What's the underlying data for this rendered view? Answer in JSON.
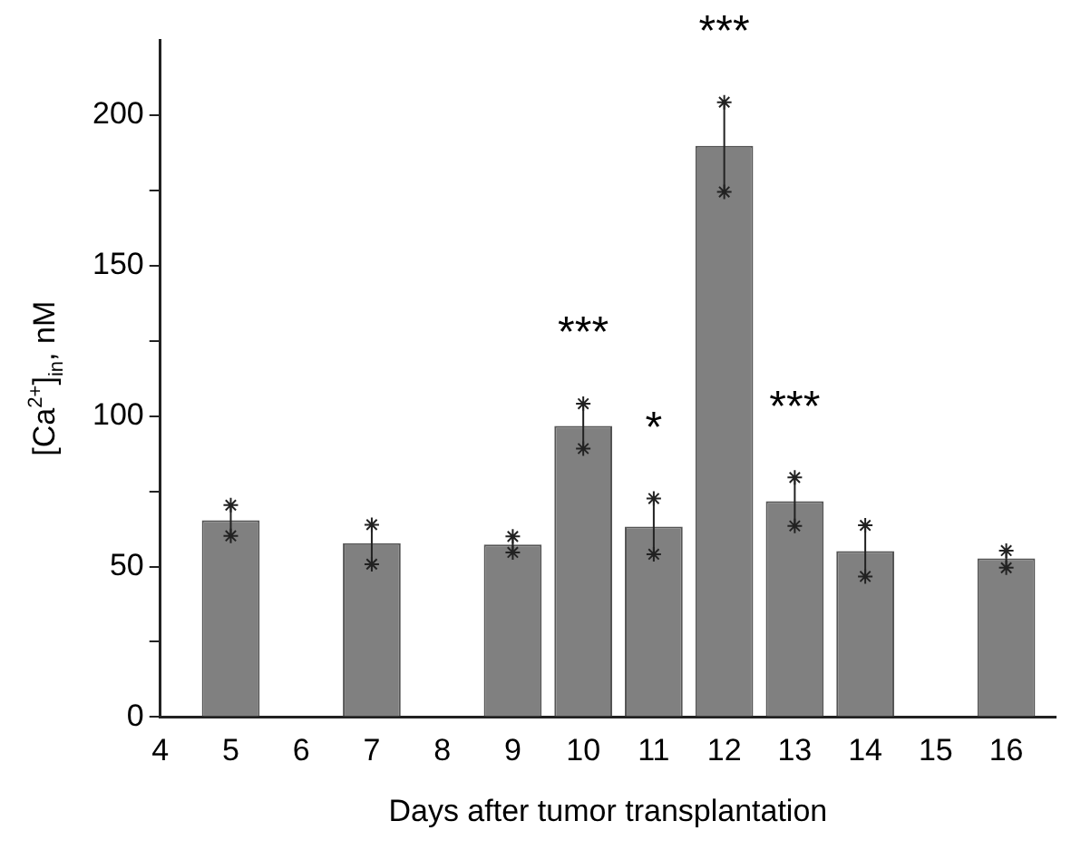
{
  "chart_data": {
    "type": "bar",
    "xlabel": "Days after tumor transplantation",
    "ylabel": "[Ca$^{2+}$]$_{in}$, nM",
    "x": [
      5,
      7,
      9,
      10,
      11,
      12,
      13,
      14,
      16
    ],
    "values": [
      65.4,
      57.8,
      57.3,
      96.7,
      63.3,
      189.8,
      71.7,
      55.1,
      52.7
    ],
    "errors": [
      [
        60.2,
        70.4
      ],
      [
        50.8,
        63.9
      ],
      [
        54.7,
        60.0
      ],
      [
        89.2,
        104.1
      ],
      [
        54.1,
        72.6
      ],
      [
        174.5,
        204.3
      ],
      [
        63.5,
        79.6
      ],
      [
        46.7,
        63.7
      ],
      [
        49.6,
        55.3
      ]
    ],
    "color": "#808080",
    "xlim": [
      4,
      16.7
    ],
    "xticks": [
      4,
      5,
      6,
      7,
      8,
      9,
      10,
      11,
      12,
      13,
      14,
      15,
      16
    ],
    "ylim": [
      0,
      225
    ],
    "yticks": [
      0,
      {
        "value": 25,
        "label": null
      },
      50,
      {
        "value": 75,
        "label": null
      },
      100,
      {
        "value": 125,
        "label": null
      },
      150,
      {
        "value": 175,
        "label": null
      },
      200
    ],
    "annotations": [
      {
        "text": "***",
        "x": 10,
        "y": 96.7
      },
      {
        "text": "*",
        "x": 11,
        "y": 63.3
      },
      {
        "text": "***",
        "x": 12,
        "y": 189.8
      },
      {
        "text": "***",
        "x": 13,
        "y": 71.7
      }
    ],
    "grid": false,
    "legend": false
  }
}
